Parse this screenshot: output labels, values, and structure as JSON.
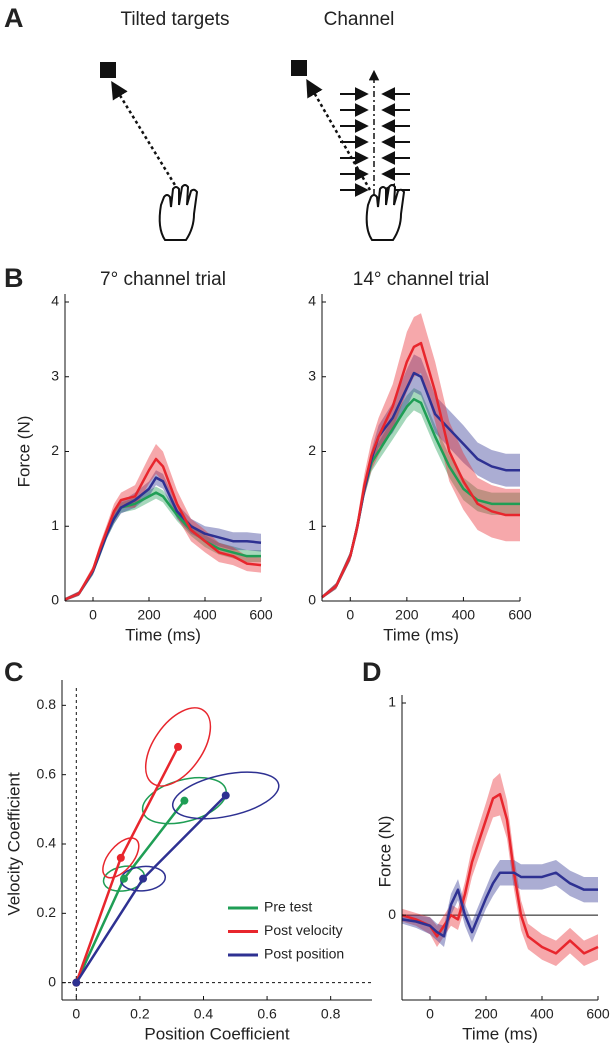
{
  "panel_labels": [
    "A",
    "B",
    "C",
    "D"
  ],
  "diagram": {
    "titles": [
      "Tilted targets",
      "Channel"
    ]
  },
  "chart_data": [
    {
      "type": "line",
      "title": "7° channel trial",
      "x_label": "Time (ms)",
      "y_label": "Force (N)",
      "x": [
        -100,
        -50,
        0,
        25,
        50,
        75,
        100,
        150,
        200,
        225,
        250,
        300,
        350,
        400,
        450,
        500,
        550,
        600
      ],
      "xlim": [
        -100,
        600
      ],
      "xticks": [
        0,
        200,
        400,
        600
      ],
      "ylim": [
        0,
        4
      ],
      "yticks": [
        0,
        1,
        2,
        3,
        4
      ],
      "series": [
        {
          "color": "#1f9e55",
          "values": [
            0.02,
            0.1,
            0.4,
            0.65,
            0.9,
            1.1,
            1.25,
            1.3,
            1.4,
            1.45,
            1.4,
            1.15,
            0.95,
            0.8,
            0.7,
            0.65,
            0.6,
            0.6
          ],
          "error": [
            0.02,
            0.03,
            0.05,
            0.06,
            0.06,
            0.07,
            0.07,
            0.08,
            0.08,
            0.08,
            0.08,
            0.08,
            0.08,
            0.08,
            0.08,
            0.08,
            0.08,
            0.08
          ]
        },
        {
          "color": "#2e3192",
          "values": [
            0.02,
            0.1,
            0.4,
            0.65,
            0.9,
            1.1,
            1.25,
            1.35,
            1.5,
            1.65,
            1.6,
            1.2,
            1.0,
            0.9,
            0.85,
            0.8,
            0.8,
            0.78
          ],
          "error": [
            0.02,
            0.03,
            0.05,
            0.06,
            0.06,
            0.07,
            0.08,
            0.1,
            0.1,
            0.1,
            0.1,
            0.1,
            0.1,
            0.1,
            0.12,
            0.12,
            0.12,
            0.12
          ]
        },
        {
          "color": "#e8262d",
          "values": [
            0.02,
            0.1,
            0.42,
            0.7,
            0.95,
            1.2,
            1.35,
            1.4,
            1.75,
            1.9,
            1.8,
            1.3,
            0.95,
            0.8,
            0.65,
            0.6,
            0.5,
            0.48
          ],
          "error": [
            0.02,
            0.03,
            0.05,
            0.07,
            0.08,
            0.1,
            0.1,
            0.15,
            0.18,
            0.2,
            0.2,
            0.18,
            0.15,
            0.15,
            0.13,
            0.12,
            0.1,
            0.1
          ]
        }
      ]
    },
    {
      "type": "line",
      "title": "14° channel trial",
      "x_label": "Time (ms)",
      "x": [
        -100,
        -50,
        0,
        25,
        50,
        75,
        100,
        150,
        200,
        225,
        250,
        300,
        350,
        400,
        450,
        500,
        550,
        600
      ],
      "xlim": [
        -100,
        600
      ],
      "xticks": [
        0,
        200,
        400,
        600
      ],
      "ylim": [
        0,
        4
      ],
      "yticks": [
        0,
        1,
        2,
        3,
        4
      ],
      "series": [
        {
          "color": "#1f9e55",
          "values": [
            0.05,
            0.2,
            0.6,
            1.0,
            1.5,
            1.85,
            2.0,
            2.3,
            2.6,
            2.7,
            2.65,
            2.2,
            1.8,
            1.5,
            1.35,
            1.3,
            1.3,
            1.3
          ],
          "error": [
            0.02,
            0.04,
            0.06,
            0.08,
            0.1,
            0.12,
            0.12,
            0.14,
            0.15,
            0.15,
            0.15,
            0.15,
            0.15,
            0.15,
            0.15,
            0.15,
            0.15,
            0.15
          ]
        },
        {
          "color": "#2e3192",
          "values": [
            0.05,
            0.2,
            0.6,
            1.0,
            1.5,
            1.9,
            2.2,
            2.45,
            2.85,
            3.05,
            3.0,
            2.5,
            2.3,
            2.1,
            1.9,
            1.8,
            1.75,
            1.75
          ],
          "error": [
            0.02,
            0.04,
            0.06,
            0.08,
            0.1,
            0.12,
            0.15,
            0.2,
            0.25,
            0.25,
            0.25,
            0.25,
            0.25,
            0.25,
            0.22,
            0.22,
            0.22,
            0.22
          ]
        },
        {
          "color": "#e8262d",
          "values": [
            0.05,
            0.2,
            0.6,
            1.0,
            1.55,
            1.95,
            2.2,
            2.6,
            3.2,
            3.4,
            3.45,
            2.8,
            2.0,
            1.6,
            1.3,
            1.2,
            1.15,
            1.15
          ],
          "error": [
            0.02,
            0.04,
            0.06,
            0.1,
            0.15,
            0.2,
            0.25,
            0.3,
            0.4,
            0.4,
            0.4,
            0.4,
            0.4,
            0.38,
            0.35,
            0.35,
            0.35,
            0.35
          ]
        }
      ]
    },
    {
      "type": "scatter",
      "x_label": "Position Coefficient",
      "y_label": "Velocity Coefficient",
      "xlim": [
        -0.045,
        0.93
      ],
      "xticks": [
        0,
        0.2,
        0.4,
        0.6,
        0.8
      ],
      "ylim": [
        -0.05,
        0.85
      ],
      "yticks": [
        0,
        0.2,
        0.4,
        0.6,
        0.8
      ],
      "zero_lines": true,
      "legend": "lower right",
      "series": [
        {
          "name": "Pre test",
          "color": "#1f9e55",
          "x": [
            0,
            0.15,
            0.34
          ],
          "values": [
            0,
            0.3,
            0.525
          ],
          "x_radius": [
            null,
            0.065,
            0.135
          ],
          "y_radius": [
            null,
            0.035,
            0.06
          ],
          "angle": [
            null,
            10,
            15
          ]
        },
        {
          "name": "Post velocity",
          "color": "#e8262d",
          "x": [
            0,
            0.14,
            0.32
          ],
          "values": [
            0,
            0.36,
            0.68
          ],
          "x_radius": [
            null,
            0.075,
            0.14
          ],
          "y_radius": [
            null,
            0.035,
            0.07
          ],
          "angle": [
            null,
            50,
            55
          ]
        },
        {
          "name": "Post position",
          "color": "#2e3192",
          "x": [
            0,
            0.21,
            0.47
          ],
          "values": [
            0,
            0.3,
            0.54
          ],
          "x_radius": [
            null,
            0.07,
            0.17
          ],
          "y_radius": [
            null,
            0.035,
            0.06
          ],
          "angle": [
            null,
            5,
            12
          ]
        }
      ]
    },
    {
      "type": "line",
      "x_label": "Time (ms)",
      "y_label": "Force (N)",
      "zero_line": true,
      "x": [
        -100,
        -50,
        0,
        25,
        50,
        75,
        100,
        125,
        150,
        200,
        225,
        250,
        275,
        300,
        325,
        350,
        400,
        450,
        500,
        550,
        600
      ],
      "xlim": [
        -100,
        600
      ],
      "xticks": [
        0,
        200,
        400,
        600
      ],
      "ylim": [
        -0.4,
        1
      ],
      "yticks": [
        0,
        1
      ],
      "series": [
        {
          "color": "#e8262d",
          "values": [
            0,
            -0.02,
            -0.05,
            -0.1,
            -0.05,
            0.0,
            -0.02,
            0.1,
            0.25,
            0.45,
            0.55,
            0.57,
            0.45,
            0.2,
            0.0,
            -0.1,
            -0.15,
            -0.18,
            -0.12,
            -0.18,
            -0.15
          ],
          "error": [
            0.03,
            0.03,
            0.04,
            0.05,
            0.05,
            0.05,
            0.05,
            0.06,
            0.07,
            0.08,
            0.09,
            0.1,
            0.09,
            0.08,
            0.07,
            0.06,
            0.06,
            0.06,
            0.06,
            0.06,
            0.06
          ]
        },
        {
          "color": "#2e3192",
          "values": [
            -0.02,
            -0.03,
            -0.05,
            -0.08,
            -0.1,
            0.05,
            0.12,
            0.0,
            -0.08,
            0.08,
            0.15,
            0.2,
            0.2,
            0.2,
            0.18,
            0.18,
            0.18,
            0.2,
            0.15,
            0.12,
            0.12
          ],
          "error": [
            0.02,
            0.03,
            0.04,
            0.04,
            0.05,
            0.05,
            0.05,
            0.05,
            0.05,
            0.05,
            0.06,
            0.06,
            0.06,
            0.06,
            0.06,
            0.06,
            0.06,
            0.06,
            0.06,
            0.06,
            0.06
          ]
        }
      ]
    }
  ]
}
